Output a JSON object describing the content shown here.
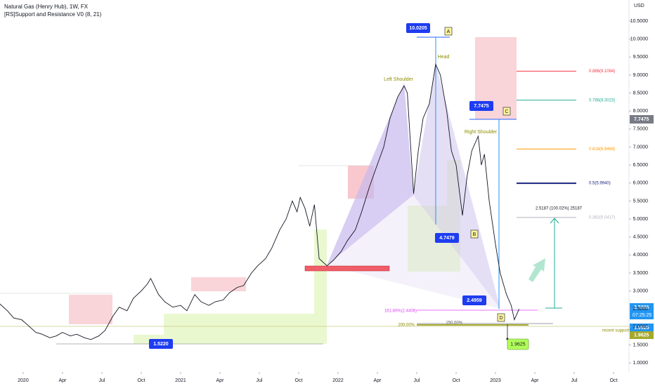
{
  "header": {
    "title": "Natural Gas (Henry Hub), 1W, FX",
    "indicator": "[RS]Support and Resistance V0 (8, 21)"
  },
  "chart_data": {
    "type": "line",
    "y_axis_label": "USD",
    "color": "#131722",
    "x": [
      2019.85,
      2019.9,
      2019.94,
      2019.99,
      2020.03,
      2020.08,
      2020.12,
      2020.17,
      2020.21,
      2020.25,
      2020.3,
      2020.34,
      2020.39,
      2020.43,
      2020.48,
      2020.52,
      2020.57,
      2020.61,
      2020.66,
      2020.7,
      2020.75,
      2020.79,
      2020.81,
      2020.86,
      2020.9,
      2020.95,
      2021.0,
      2021.04,
      2021.09,
      2021.13,
      2021.18,
      2021.22,
      2021.27,
      2021.31,
      2021.36,
      2021.4,
      2021.45,
      2021.49,
      2021.54,
      2021.58,
      2021.63,
      2021.67,
      2021.71,
      2021.74,
      2021.76,
      2021.79,
      2021.82,
      2021.85,
      2021.88,
      2021.93,
      2021.97,
      2022.02,
      2022.06,
      2022.11,
      2022.15,
      2022.2,
      2022.24,
      2022.29,
      2022.33,
      2022.38,
      2022.42,
      2022.44,
      2022.48,
      2022.51,
      2022.54,
      2022.58,
      2022.62,
      2022.65,
      2022.69,
      2022.72,
      2022.75,
      2022.79,
      2022.82,
      2022.85,
      2022.89,
      2022.91,
      2022.93,
      2022.96,
      2023.0,
      2023.03,
      2023.07,
      2023.1,
      2023.12,
      2023.15
    ],
    "values": [
      2.65,
      2.45,
      2.25,
      2.2,
      2.05,
      1.85,
      1.8,
      1.7,
      1.75,
      1.85,
      1.75,
      1.8,
      1.7,
      1.65,
      1.75,
      1.9,
      2.3,
      2.55,
      2.45,
      2.8,
      3.0,
      3.2,
      3.35,
      2.9,
      2.7,
      2.55,
      2.6,
      2.45,
      2.9,
      2.7,
      2.6,
      2.7,
      2.75,
      2.95,
      3.1,
      3.15,
      3.5,
      3.7,
      3.9,
      4.2,
      4.7,
      5.0,
      5.5,
      5.2,
      5.6,
      5.3,
      4.8,
      5.4,
      3.9,
      3.7,
      3.85,
      4.1,
      4.4,
      4.7,
      5.2,
      5.9,
      6.4,
      7.0,
      7.8,
      8.4,
      8.7,
      8.5,
      5.7,
      6.9,
      7.8,
      8.2,
      9.3,
      9.0,
      8.0,
      6.9,
      6.5,
      5.1,
      6.2,
      6.9,
      7.3,
      6.5,
      6.8,
      5.5,
      4.3,
      3.5,
      2.9,
      2.6,
      2.2,
      2.5
    ],
    "xlim": [
      2019.853,
      2023.848
    ],
    "ylim": [
      0.75,
      11.085
    ],
    "xticks": [
      2020,
      {
        "value": 2020.25,
        "label": "Apr"
      },
      {
        "value": 2020.5,
        "label": "Jul"
      },
      {
        "value": 2020.75,
        "label": "Oct"
      },
      2021,
      {
        "value": 2021.25,
        "label": "Apr"
      },
      {
        "value": 2021.5,
        "label": "Jul"
      },
      {
        "value": 2021.75,
        "label": "Oct"
      },
      2022,
      {
        "value": 2022.25,
        "label": "Apr"
      },
      {
        "value": 2022.5,
        "label": "Jul"
      },
      {
        "value": 2022.75,
        "label": "Oct"
      },
      2023,
      {
        "value": 2023.25,
        "label": "Apr"
      },
      {
        "value": 2023.5,
        "label": "Jul"
      },
      {
        "value": 2023.75,
        "label": "Oct"
      }
    ],
    "yticks": [
      {
        "value": 1.0,
        "label": "1.0000"
      },
      {
        "value": 1.5,
        "label": "1.5000"
      },
      {
        "value": 2.0,
        "label": "2.0000"
      },
      {
        "value": 2.5,
        "label": "2.5000"
      },
      {
        "value": 3.0,
        "label": "3.0000"
      },
      {
        "value": 3.5,
        "label": "3.5000"
      },
      {
        "value": 4.0,
        "label": "4.0000"
      },
      {
        "value": 4.5,
        "label": "4.5000"
      },
      {
        "value": 5.0,
        "label": "5.0000"
      },
      {
        "value": 5.5,
        "label": "5.5000"
      },
      {
        "value": 6.0,
        "label": "6.0000"
      },
      {
        "value": 6.5,
        "label": "6.5000"
      },
      {
        "value": 7.0,
        "label": "7.0000"
      },
      {
        "value": 7.5,
        "label": "7.5000"
      },
      {
        "value": 8.0,
        "label": "8.0000"
      },
      {
        "value": 8.5,
        "label": "8.5000"
      },
      {
        "value": 9.0,
        "label": "9.0000"
      },
      {
        "value": 9.5,
        "label": "9.5000"
      },
      {
        "value": 10.0,
        "label": "10.0000"
      },
      {
        "value": 10.5,
        "label": "10.5000"
      }
    ],
    "fib_levels": [
      {
        "value": 9.1094,
        "label": "0.886(9.1094)",
        "color": "#f23645"
      },
      {
        "value": 8.3023,
        "label": "0.786(8.3023)",
        "color": "#22ab94"
      },
      {
        "value": 6.9464,
        "label": "0.618(6.9464)",
        "color": "#ff9800"
      },
      {
        "value": 5.994,
        "label": "0.5(5.9940)",
        "color": "#1a237e"
      },
      {
        "value": 5.0417,
        "label": "0.382(5.0417)",
        "color": "#b2b5be"
      }
    ],
    "points": [
      "A",
      "B",
      "C",
      "D"
    ],
    "pattern": [
      "Left Shoulder",
      "Head",
      "Right Shoulder"
    ],
    "tags": [
      "10.0205",
      "7.7475",
      "4.7479",
      "2.4959",
      "1.5220",
      "1.9625"
    ],
    "extensions": [
      "161.80%(2.4406)",
      "200.00%",
      "150.00%"
    ],
    "measure": "2.5187 (100.02%) 25187",
    "support": "recent support",
    "axis_tags": [
      "7.7475",
      "2.5006",
      "07:25:25",
      "1.9625",
      "1.9625"
    ]
  }
}
